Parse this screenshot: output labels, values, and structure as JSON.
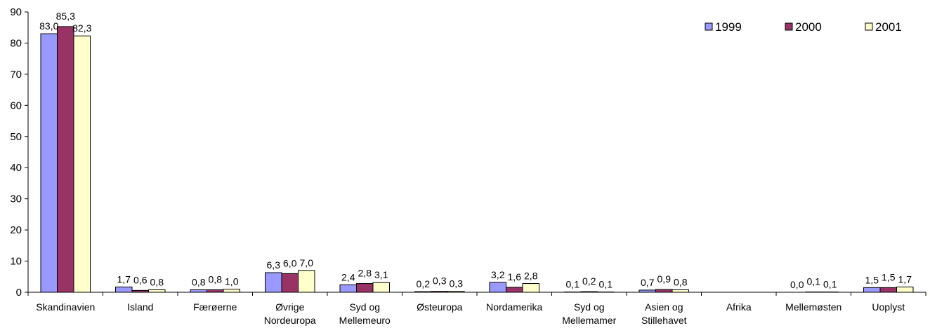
{
  "chart_data": {
    "type": "bar",
    "title": "",
    "xlabel": "",
    "ylabel": "",
    "ylim": [
      0,
      90
    ],
    "yticks": [
      "0",
      "10",
      "20",
      "30",
      "40",
      "50",
      "60",
      "70",
      "80",
      "90"
    ],
    "legend_position": "top-right",
    "grid": false,
    "categories": [
      [
        "Skandinavien"
      ],
      [
        "Island"
      ],
      [
        "Færøerne"
      ],
      [
        "Øvrige",
        "Nordeuropa"
      ],
      [
        "Syd og",
        "Mellemeuro"
      ],
      [
        "Østeuropa"
      ],
      [
        "Nordamerika"
      ],
      [
        "Syd og",
        "Mellemamer"
      ],
      [
        "Asien og",
        "Stillehavet"
      ],
      [
        "Afrika"
      ],
      [
        "Mellemøsten"
      ],
      [
        "Uoplyst"
      ]
    ],
    "series": [
      {
        "name": "1999",
        "color": "#9999ff",
        "values": [
          83.0,
          1.7,
          0.8,
          6.3,
          2.4,
          0.2,
          3.2,
          0.1,
          0.7,
          null,
          0.0,
          1.5
        ],
        "labels": [
          "83,0",
          "1,7",
          "0,8",
          "6,3",
          "2,4",
          "0,2",
          "3,2",
          "0,1",
          "0,7",
          "",
          "0,0",
          "1,5"
        ]
      },
      {
        "name": "2000",
        "color": "#993366",
        "values": [
          85.3,
          0.6,
          0.8,
          6.0,
          2.8,
          0.3,
          1.6,
          0.2,
          0.9,
          null,
          0.1,
          1.5
        ],
        "labels": [
          "85,3",
          "0,6",
          "0,8",
          "6,0",
          "2,8",
          "0,3",
          "1,6",
          "0,2",
          "0,9",
          "",
          "0,1",
          "1,5"
        ]
      },
      {
        "name": "2001",
        "color": "#ffffcc",
        "values": [
          82.3,
          0.8,
          1.0,
          7.0,
          3.1,
          0.3,
          2.8,
          0.1,
          0.8,
          null,
          0.1,
          1.7
        ],
        "labels": [
          "82,3",
          "0,8",
          "1,0",
          "7,0",
          "3,1",
          "0,3",
          "2,8",
          "0,1",
          "0,8",
          "",
          "0,1",
          "1,7"
        ]
      }
    ]
  }
}
